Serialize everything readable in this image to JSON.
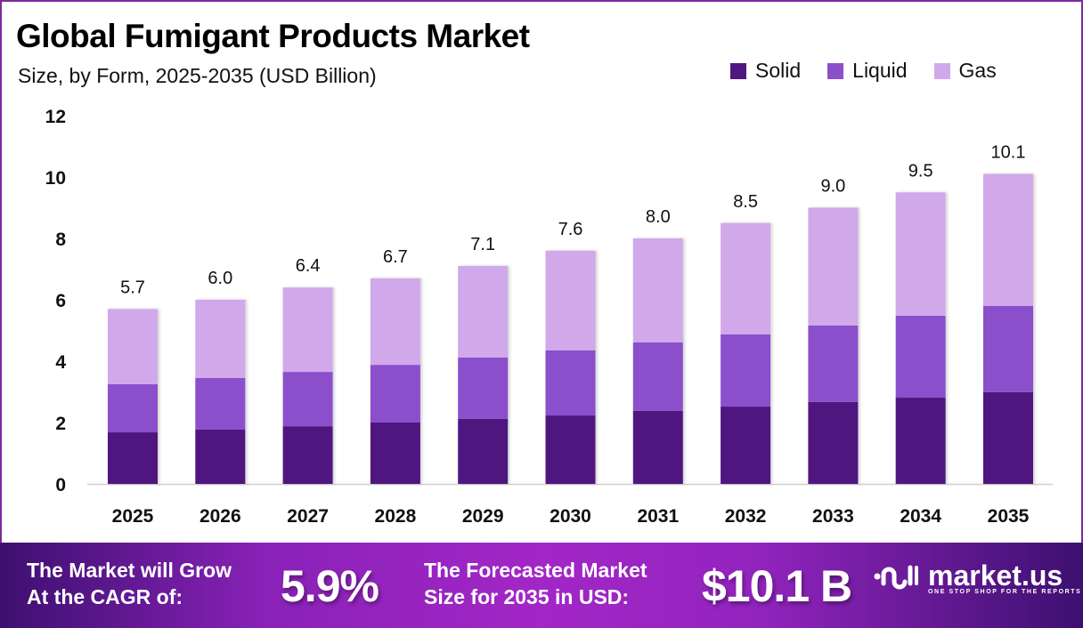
{
  "header": {
    "title": "Global Fumigant Products Market",
    "subtitle": "Size, by Form, 2025-2035 (USD Billion)"
  },
  "legend": [
    {
      "label": "Solid",
      "color": "#4f1780"
    },
    {
      "label": "Liquid",
      "color": "#8b4fcc"
    },
    {
      "label": "Gas",
      "color": "#d1a8ea"
    }
  ],
  "chart_data": {
    "type": "bar",
    "stacked": true,
    "title": "Global Fumigant Products Market",
    "subtitle": "Size, by Form, 2025-2035 (USD Billion)",
    "xlabel": "",
    "ylabel": "",
    "ylim": [
      0,
      12
    ],
    "yticks": [
      0,
      2,
      4,
      6,
      8,
      10,
      12
    ],
    "grid": false,
    "legend_position": "top-right",
    "categories": [
      "2025",
      "2026",
      "2027",
      "2028",
      "2029",
      "2030",
      "2031",
      "2032",
      "2033",
      "2034",
      "2035"
    ],
    "series": [
      {
        "name": "Solid",
        "color": "#4f1780",
        "values": [
          1.68,
          1.77,
          1.88,
          2.0,
          2.12,
          2.23,
          2.38,
          2.52,
          2.67,
          2.81,
          2.99
        ]
      },
      {
        "name": "Liquid",
        "color": "#8b4fcc",
        "values": [
          1.57,
          1.68,
          1.77,
          1.88,
          2.0,
          2.12,
          2.23,
          2.35,
          2.49,
          2.67,
          2.81
        ]
      },
      {
        "name": "Gas",
        "color": "#d1a8ea",
        "values": [
          2.45,
          2.55,
          2.75,
          2.82,
          2.98,
          3.25,
          3.39,
          3.63,
          3.84,
          4.02,
          4.3
        ]
      }
    ],
    "totals": [
      5.7,
      6.0,
      6.4,
      6.7,
      7.1,
      7.6,
      8.0,
      8.5,
      9.0,
      9.5,
      10.1
    ],
    "total_labels": [
      "5.7",
      "6.0",
      "6.4",
      "6.7",
      "7.1",
      "7.6",
      "8.0",
      "8.5",
      "9.0",
      "9.5",
      "10.1"
    ]
  },
  "footer": {
    "cagr_label_line1": "The Market will Grow",
    "cagr_label_line2": "At the CAGR of:",
    "cagr_value": "5.9%",
    "forecast_label_line1": "The Forecasted Market",
    "forecast_label_line2": "Size for 2035 in USD:",
    "forecast_value": "$10.1 B",
    "logo_text": "market.us",
    "logo_tagline": "ONE STOP SHOP FOR THE REPORTS"
  }
}
